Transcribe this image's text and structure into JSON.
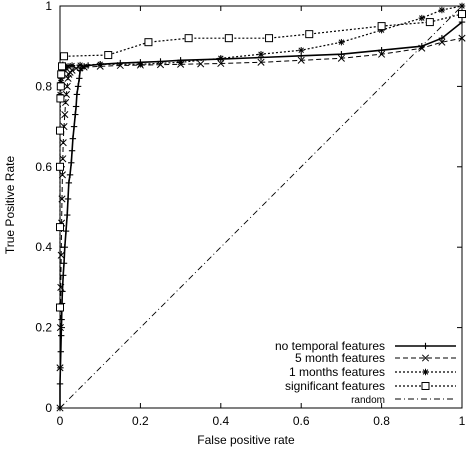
{
  "chart_data": {
    "type": "line",
    "xlabel": "False positive rate",
    "ylabel": "True Positive Rate",
    "xlim": [
      0,
      1
    ],
    "ylim": [
      0,
      1
    ],
    "x_ticks": [
      "0",
      "0.2",
      "0.4",
      "0.6",
      "0.8",
      "1"
    ],
    "y_ticks": [
      "0",
      "0.2",
      "0.4",
      "0.6",
      "0.8",
      "1"
    ],
    "grid": false,
    "legend_position": "bottom-right",
    "series": [
      {
        "name": "no temporal features",
        "style": "solid",
        "marker": "plus",
        "x": [
          0,
          0,
          0.001,
          0.002,
          0.003,
          0.004,
          0.005,
          0.006,
          0.008,
          0.01,
          0.012,
          0.015,
          0.018,
          0.02,
          0.022,
          0.025,
          0.028,
          0.03,
          0.032,
          0.035,
          0.038,
          0.04,
          0.042,
          0.045,
          0.048,
          0.05,
          0.055,
          0.06,
          0.07,
          0.1,
          0.15,
          0.2,
          0.25,
          0.3,
          0.4,
          0.5,
          0.6,
          0.7,
          0.8,
          0.9,
          0.95,
          1.0
        ],
        "y": [
          0,
          0.06,
          0.1,
          0.14,
          0.18,
          0.22,
          0.26,
          0.29,
          0.33,
          0.36,
          0.4,
          0.44,
          0.48,
          0.52,
          0.56,
          0.58,
          0.61,
          0.64,
          0.67,
          0.7,
          0.73,
          0.75,
          0.78,
          0.8,
          0.82,
          0.84,
          0.845,
          0.85,
          0.852,
          0.855,
          0.858,
          0.86,
          0.862,
          0.865,
          0.868,
          0.872,
          0.876,
          0.88,
          0.89,
          0.9,
          0.92,
          0.96
        ]
      },
      {
        "name": "5 month features",
        "style": "dashed",
        "marker": "x",
        "x": [
          0,
          0,
          0.001,
          0.002,
          0.003,
          0.004,
          0.005,
          0.006,
          0.007,
          0.008,
          0.01,
          0.012,
          0.014,
          0.016,
          0.018,
          0.02,
          0.022,
          0.025,
          0.03,
          0.04,
          0.06,
          0.1,
          0.15,
          0.2,
          0.25,
          0.3,
          0.35,
          0.4,
          0.5,
          0.6,
          0.7,
          0.8,
          0.9,
          0.95,
          1.0
        ],
        "y": [
          0,
          0.1,
          0.2,
          0.3,
          0.38,
          0.46,
          0.52,
          0.58,
          0.62,
          0.66,
          0.7,
          0.73,
          0.76,
          0.78,
          0.8,
          0.82,
          0.83,
          0.835,
          0.84,
          0.845,
          0.848,
          0.85,
          0.852,
          0.853,
          0.854,
          0.855,
          0.856,
          0.857,
          0.86,
          0.865,
          0.87,
          0.88,
          0.895,
          0.91,
          0.92
        ]
      },
      {
        "name": "1 months features",
        "style": "dotted",
        "marker": "star",
        "x": [
          0,
          0.001,
          0.002,
          0.003,
          0.004,
          0.005,
          0.006,
          0.008,
          0.01,
          0.012,
          0.015,
          0.02,
          0.03,
          0.05,
          0.1,
          0.2,
          0.3,
          0.4,
          0.5,
          0.6,
          0.7,
          0.8,
          0.9,
          0.95,
          1.0
        ],
        "y": [
          0.78,
          0.8,
          0.81,
          0.82,
          0.83,
          0.835,
          0.84,
          0.842,
          0.845,
          0.847,
          0.849,
          0.85,
          0.852,
          0.853,
          0.855,
          0.855,
          0.86,
          0.87,
          0.88,
          0.89,
          0.91,
          0.94,
          0.97,
          0.99,
          1.0
        ]
      },
      {
        "name": "significant features",
        "style": "dotted",
        "marker": "square",
        "x": [
          0,
          0,
          0,
          0,
          0.001,
          0.002,
          0.003,
          0.005,
          0.01,
          0.12,
          0.22,
          0.32,
          0.42,
          0.52,
          0.62,
          0.8,
          0.92,
          1.0
        ],
        "y": [
          0.25,
          0.45,
          0.6,
          0.69,
          0.77,
          0.8,
          0.83,
          0.85,
          0.875,
          0.878,
          0.91,
          0.92,
          0.92,
          0.92,
          0.93,
          0.95,
          0.96,
          0.98
        ]
      },
      {
        "name": "random",
        "style": "dashdot",
        "marker": "none",
        "x": [
          0,
          1
        ],
        "y": [
          0,
          1
        ]
      }
    ]
  }
}
